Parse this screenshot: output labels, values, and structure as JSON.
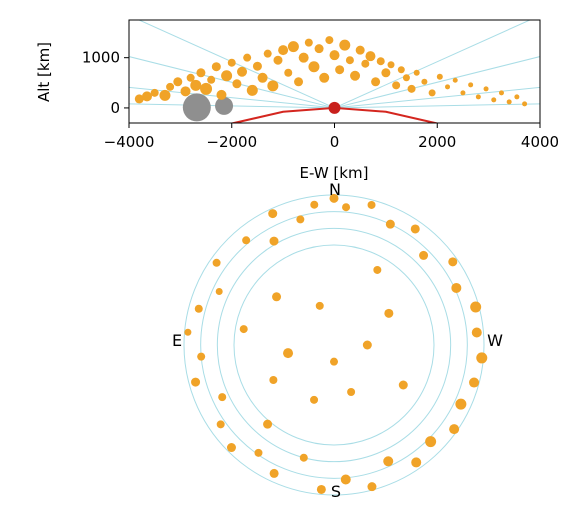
{
  "colors": {
    "satellite": "#f0a328",
    "earth": "#d4261f",
    "observer": "#c8201c",
    "grid_lines": "#a9dde6",
    "grey_objects": "#8f8f8f",
    "axes": "#000000"
  },
  "chart_data": [
    {
      "type": "scatter",
      "title": "",
      "xlabel": "E-W [km]",
      "ylabel": "Alt [km]",
      "xlim": [
        -4000,
        4000
      ],
      "ylim": [
        -300,
        1750
      ],
      "xticks": [
        -4000,
        -2000,
        0,
        2000,
        4000
      ],
      "xtick_labels": [
        "−4000",
        "−2000",
        "0",
        "2000",
        "4000"
      ],
      "yticks": [
        0,
        1000
      ],
      "ytick_labels": [
        "0",
        "1000"
      ],
      "grid": false,
      "earth_surface": {
        "x": [
          -2000,
          -1000,
          0,
          1000,
          2000
        ],
        "alt": [
          -310,
          -78,
          0,
          -78,
          -310
        ]
      },
      "observer": {
        "x": 0,
        "alt": 0
      },
      "grey_objects": [
        {
          "x": -2680,
          "alt": 10,
          "size": 14
        },
        {
          "x": -2150,
          "alt": 40,
          "size": 9
        }
      ],
      "points": [
        {
          "x": -3800,
          "alt": 180,
          "size": 7
        },
        {
          "x": -3650,
          "alt": 230,
          "size": 8
        },
        {
          "x": -3500,
          "alt": 300,
          "size": 6
        },
        {
          "x": -3300,
          "alt": 250,
          "size": 9
        },
        {
          "x": -3200,
          "alt": 420,
          "size": 6
        },
        {
          "x": -3050,
          "alt": 520,
          "size": 7
        },
        {
          "x": -2900,
          "alt": 330,
          "size": 8
        },
        {
          "x": -2800,
          "alt": 600,
          "size": 6
        },
        {
          "x": -2700,
          "alt": 450,
          "size": 9
        },
        {
          "x": -2600,
          "alt": 700,
          "size": 7
        },
        {
          "x": -2500,
          "alt": 380,
          "size": 10
        },
        {
          "x": -2400,
          "alt": 560,
          "size": 6
        },
        {
          "x": -2300,
          "alt": 820,
          "size": 7
        },
        {
          "x": -2200,
          "alt": 260,
          "size": 8
        },
        {
          "x": -2100,
          "alt": 640,
          "size": 9
        },
        {
          "x": -2000,
          "alt": 900,
          "size": 6
        },
        {
          "x": -1900,
          "alt": 480,
          "size": 7
        },
        {
          "x": -1800,
          "alt": 720,
          "size": 8
        },
        {
          "x": -1700,
          "alt": 1000,
          "size": 6
        },
        {
          "x": -1600,
          "alt": 350,
          "size": 9
        },
        {
          "x": -1500,
          "alt": 830,
          "size": 7
        },
        {
          "x": -1400,
          "alt": 600,
          "size": 8
        },
        {
          "x": -1300,
          "alt": 1080,
          "size": 6
        },
        {
          "x": -1200,
          "alt": 440,
          "size": 9
        },
        {
          "x": -1100,
          "alt": 950,
          "size": 7
        },
        {
          "x": -1000,
          "alt": 1150,
          "size": 8
        },
        {
          "x": -900,
          "alt": 700,
          "size": 6
        },
        {
          "x": -800,
          "alt": 1220,
          "size": 9
        },
        {
          "x": -700,
          "alt": 520,
          "size": 7
        },
        {
          "x": -600,
          "alt": 1000,
          "size": 8
        },
        {
          "x": -500,
          "alt": 1300,
          "size": 6
        },
        {
          "x": -400,
          "alt": 820,
          "size": 9
        },
        {
          "x": -300,
          "alt": 1180,
          "size": 7
        },
        {
          "x": -200,
          "alt": 600,
          "size": 8
        },
        {
          "x": -100,
          "alt": 1350,
          "size": 6
        },
        {
          "x": 0,
          "alt": 1050,
          "size": 8
        },
        {
          "x": 100,
          "alt": 760,
          "size": 7
        },
        {
          "x": 200,
          "alt": 1250,
          "size": 9
        },
        {
          "x": 300,
          "alt": 950,
          "size": 6
        },
        {
          "x": 400,
          "alt": 640,
          "size": 8
        },
        {
          "x": 500,
          "alt": 1150,
          "size": 7
        },
        {
          "x": 600,
          "alt": 880,
          "size": 6
        },
        {
          "x": 700,
          "alt": 1030,
          "size": 8
        },
        {
          "x": 800,
          "alt": 520,
          "size": 7
        },
        {
          "x": 900,
          "alt": 930,
          "size": 6
        },
        {
          "x": 1000,
          "alt": 700,
          "size": 7
        },
        {
          "x": 1100,
          "alt": 860,
          "size": 5
        },
        {
          "x": 1200,
          "alt": 450,
          "size": 6
        },
        {
          "x": 1300,
          "alt": 760,
          "size": 5
        },
        {
          "x": 1400,
          "alt": 600,
          "size": 5
        },
        {
          "x": 1500,
          "alt": 380,
          "size": 6
        },
        {
          "x": 1600,
          "alt": 700,
          "size": 4
        },
        {
          "x": 1750,
          "alt": 520,
          "size": 4
        },
        {
          "x": 1900,
          "alt": 300,
          "size": 5
        },
        {
          "x": 2050,
          "alt": 620,
          "size": 4
        },
        {
          "x": 2200,
          "alt": 420,
          "size": 3
        },
        {
          "x": 2350,
          "alt": 550,
          "size": 3
        },
        {
          "x": 2500,
          "alt": 300,
          "size": 3
        },
        {
          "x": 2650,
          "alt": 460,
          "size": 3
        },
        {
          "x": 2800,
          "alt": 220,
          "size": 3
        },
        {
          "x": 2950,
          "alt": 380,
          "size": 3
        },
        {
          "x": 3100,
          "alt": 160,
          "size": 3
        },
        {
          "x": 3250,
          "alt": 300,
          "size": 3
        },
        {
          "x": 3400,
          "alt": 120,
          "size": 3
        },
        {
          "x": 3550,
          "alt": 220,
          "size": 3
        },
        {
          "x": 3700,
          "alt": 80,
          "size": 3
        }
      ]
    },
    {
      "type": "scatter",
      "projection": "polar-sky",
      "title": "",
      "compass": {
        "north": "N",
        "south": "S",
        "east": "E",
        "west": "W"
      },
      "elevation_rings_deg": [
        0,
        10,
        20,
        30
      ],
      "points": [
        {
          "az": 0,
          "el": 2,
          "size": 6
        },
        {
          "az": 8,
          "el": 5,
          "size": 5
        },
        {
          "az": 15,
          "el": 12,
          "size": 5
        },
        {
          "az": 25,
          "el": 3,
          "size": 6
        },
        {
          "az": 30,
          "el": 18,
          "size": 6
        },
        {
          "az": 40,
          "el": 8,
          "size": 5
        },
        {
          "az": 55,
          "el": 4,
          "size": 5
        },
        {
          "az": 65,
          "el": 14,
          "size": 4
        },
        {
          "az": 75,
          "el": 6,
          "size": 5
        },
        {
          "az": 85,
          "el": 2,
          "size": 4
        },
        {
          "az": 95,
          "el": 10,
          "size": 5
        },
        {
          "az": 105,
          "el": 4,
          "size": 6
        },
        {
          "az": 115,
          "el": 16,
          "size": 5
        },
        {
          "az": 125,
          "el": 7,
          "size": 5
        },
        {
          "az": 135,
          "el": 3,
          "size": 6
        },
        {
          "az": 145,
          "el": 11,
          "size": 5
        },
        {
          "az": 155,
          "el": 5,
          "size": 6
        },
        {
          "az": 165,
          "el": 20,
          "size": 5
        },
        {
          "az": 175,
          "el": 3,
          "size": 6
        },
        {
          "az": 185,
          "el": 9,
          "size": 7
        },
        {
          "az": 195,
          "el": 2,
          "size": 6
        },
        {
          "az": 205,
          "el": 13,
          "size": 7
        },
        {
          "az": 215,
          "el": 4,
          "size": 7
        },
        {
          "az": 225,
          "el": 8,
          "size": 8
        },
        {
          "az": 235,
          "el": 2,
          "size": 7
        },
        {
          "az": 245,
          "el": 6,
          "size": 8
        },
        {
          "az": 255,
          "el": 3,
          "size": 7
        },
        {
          "az": 265,
          "el": 1,
          "size": 8
        },
        {
          "az": 275,
          "el": 4,
          "size": 7
        },
        {
          "az": 285,
          "el": 2,
          "size": 8
        },
        {
          "az": 295,
          "el": 9,
          "size": 7
        },
        {
          "az": 305,
          "el": 3,
          "size": 6
        },
        {
          "az": 315,
          "el": 14,
          "size": 6
        },
        {
          "az": 325,
          "el": 5,
          "size": 6
        },
        {
          "az": 335,
          "el": 10,
          "size": 6
        },
        {
          "az": 345,
          "el": 3,
          "size": 5
        },
        {
          "az": 355,
          "el": 7,
          "size": 5
        },
        {
          "az": 50,
          "el": 45,
          "size": 6
        },
        {
          "az": 80,
          "el": 35,
          "size": 5
        },
        {
          "az": 120,
          "el": 48,
          "size": 5
        },
        {
          "az": 160,
          "el": 55,
          "size": 5
        },
        {
          "az": 200,
          "el": 60,
          "size": 5
        },
        {
          "az": 240,
          "el": 42,
          "size": 6
        },
        {
          "az": 300,
          "el": 52,
          "size": 6
        },
        {
          "az": 330,
          "el": 38,
          "size": 5
        },
        {
          "az": 20,
          "el": 65,
          "size": 5
        },
        {
          "az": 100,
          "el": 62,
          "size": 7
        },
        {
          "az": 180,
          "el": 80,
          "size": 5
        },
        {
          "az": 270,
          "el": 70,
          "size": 6
        },
        {
          "az": 140,
          "el": 28,
          "size": 6
        }
      ]
    }
  ]
}
